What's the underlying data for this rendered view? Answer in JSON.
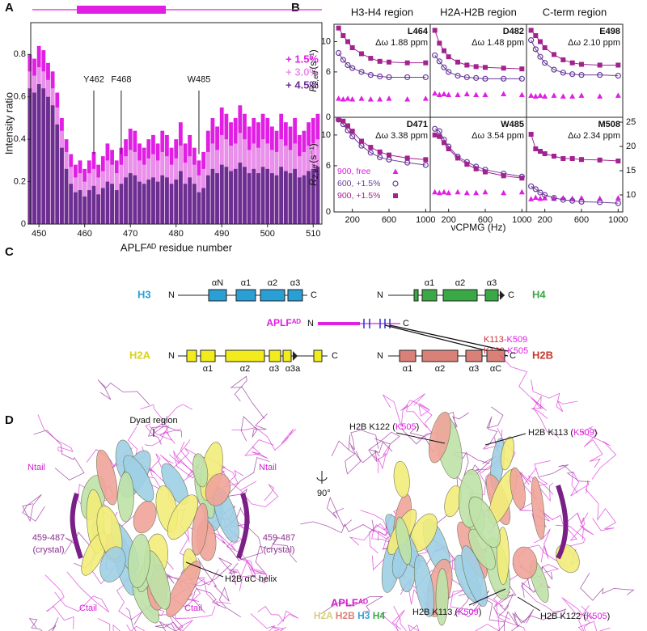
{
  "panel_labels": [
    "A",
    "B",
    "C",
    "D"
  ],
  "chart_data": [
    {
      "type": "bar",
      "xlabel": "APLFᴬᴰ residue number",
      "ylabel": "Intensity ratio",
      "x": [
        448,
        449,
        450,
        451,
        452,
        453,
        454,
        455,
        456,
        457,
        458,
        459,
        460,
        461,
        462,
        463,
        464,
        465,
        466,
        467,
        468,
        469,
        470,
        471,
        472,
        473,
        474,
        475,
        476,
        477,
        478,
        479,
        480,
        481,
        482,
        483,
        484,
        485,
        486,
        487,
        488,
        489,
        490,
        491,
        492,
        493,
        494,
        495,
        496,
        497,
        498,
        499,
        500,
        501,
        502,
        503,
        504,
        505,
        506,
        507,
        508,
        509,
        510,
        511
      ],
      "xlim": [
        448.2,
        511.9
      ],
      "xticks": [
        450,
        460,
        470,
        480,
        490,
        500,
        510
      ],
      "ylim": [
        0,
        0.95
      ],
      "yticks": [
        0,
        0.2,
        0.4,
        0.6,
        0.8
      ],
      "legend": "upper right",
      "series": [
        {
          "name": "+ 1.5%",
          "color": "#e01ee4",
          "values": [
            0.8,
            0.78,
            0.84,
            0.82,
            0.76,
            0.72,
            0.62,
            0.5,
            0.4,
            0.33,
            0.28,
            0.3,
            0.26,
            0.3,
            0.34,
            0.28,
            0.32,
            0.38,
            0.35,
            0.3,
            0.36,
            0.4,
            0.45,
            0.44,
            0.38,
            0.36,
            0.4,
            0.42,
            0.38,
            0.44,
            0.42,
            0.36,
            0.4,
            0.48,
            0.38,
            0.42,
            0.36,
            0.3,
            0.34,
            0.44,
            0.5,
            0.46,
            0.55,
            0.52,
            0.48,
            0.5,
            0.56,
            0.52,
            0.46,
            0.5,
            0.48,
            0.52,
            0.5,
            0.46,
            0.44,
            0.52,
            0.48,
            0.46,
            0.5,
            0.42,
            0.44,
            0.48,
            0.5,
            0.52
          ]
        },
        {
          "name": "+ 3.0%",
          "color": "#e990ea",
          "values": [
            0.72,
            0.7,
            0.74,
            0.72,
            0.68,
            0.64,
            0.55,
            0.44,
            0.34,
            0.27,
            0.22,
            0.24,
            0.2,
            0.24,
            0.26,
            0.22,
            0.25,
            0.3,
            0.28,
            0.24,
            0.28,
            0.32,
            0.35,
            0.34,
            0.3,
            0.28,
            0.31,
            0.33,
            0.3,
            0.34,
            0.32,
            0.28,
            0.31,
            0.37,
            0.29,
            0.32,
            0.28,
            0.23,
            0.26,
            0.34,
            0.38,
            0.35,
            0.42,
            0.4,
            0.37,
            0.38,
            0.43,
            0.4,
            0.35,
            0.38,
            0.36,
            0.4,
            0.38,
            0.35,
            0.34,
            0.4,
            0.37,
            0.35,
            0.38,
            0.32,
            0.34,
            0.37,
            0.38,
            0.4
          ]
        },
        {
          "name": "+ 4.5%",
          "color": "#6b2f90",
          "values": [
            0.64,
            0.62,
            0.66,
            0.64,
            0.6,
            0.56,
            0.47,
            0.36,
            0.26,
            0.19,
            0.15,
            0.16,
            0.13,
            0.16,
            0.18,
            0.14,
            0.17,
            0.2,
            0.19,
            0.16,
            0.19,
            0.22,
            0.24,
            0.23,
            0.2,
            0.19,
            0.21,
            0.22,
            0.2,
            0.23,
            0.22,
            0.19,
            0.21,
            0.25,
            0.19,
            0.22,
            0.19,
            0.15,
            0.17,
            0.23,
            0.26,
            0.24,
            0.28,
            0.27,
            0.25,
            0.26,
            0.29,
            0.27,
            0.24,
            0.26,
            0.24,
            0.27,
            0.26,
            0.24,
            0.23,
            0.27,
            0.25,
            0.24,
            0.26,
            0.22,
            0.23,
            0.25,
            0.26,
            0.27
          ]
        }
      ],
      "annotations": [
        {
          "text": "Y462",
          "x": 462
        },
        {
          "text": "F468",
          "x": 468
        },
        {
          "text": "W485",
          "x": 485
        }
      ]
    },
    {
      "type": "scatter",
      "column_titles": [
        "H3-H4 region",
        "H2A-H2B region",
        "C-term region"
      ],
      "ylabel": {
        "symbol": "R",
        "sub": "2,eff",
        "unit": "(s⁻¹)"
      },
      "xlabel": "νCPMG (Hz)",
      "x": [
        50,
        100,
        150,
        200,
        300,
        400,
        500,
        600,
        800,
        1000
      ],
      "xlim": [
        0,
        1050
      ],
      "xticks": [
        200,
        600,
        1000
      ],
      "ylim": [
        0,
        12.3
      ],
      "yticks": [
        0,
        6,
        10
      ],
      "y2lim": [
        6.5,
        26
      ],
      "y2ticks": [
        10,
        15,
        20,
        25
      ],
      "legend_subplot": 3,
      "series": [
        {
          "name": "900, free",
          "color": "#e01ee4",
          "marker": "triangle"
        },
        {
          "name": "600, +1.5%",
          "color": "#6a3b9c",
          "marker": "circle"
        },
        {
          "name": "900, +1.5%",
          "color": "#a2228f",
          "marker": "square"
        }
      ],
      "subplots": [
        {
          "residue": "L464",
          "shift": "Δω 1.88 ppm",
          "values": [
            [
              2.5,
              2.4,
              2.5,
              2.4,
              2.5,
              2.4,
              2.4,
              2.5,
              2.4,
              2.5
            ],
            [
              8.5,
              7.6,
              6.9,
              6.5,
              6.0,
              5.6,
              5.4,
              5.3,
              5.3,
              5.3
            ],
            [
              11.8,
              10.8,
              10.0,
              9.2,
              8.4,
              7.8,
              7.4,
              7.3,
              7.2,
              7.2
            ]
          ]
        },
        {
          "residue": "D482",
          "shift": "Δω 1.48 ppm",
          "values": [
            [
              3.2,
              3.0,
              3.1,
              3.0,
              3.0,
              3.1,
              3.0,
              3.0,
              3.1,
              3.0
            ],
            [
              8.2,
              7.4,
              6.6,
              6.0,
              5.5,
              5.3,
              5.2,
              5.1,
              5.1,
              5.1
            ],
            [
              11.5,
              9.8,
              8.8,
              8.0,
              7.3,
              6.9,
              6.7,
              6.6,
              6.5,
              6.4
            ]
          ]
        },
        {
          "residue": "E498",
          "shift": "Δω 2.10 ppm",
          "values": [
            [
              2.9,
              2.8,
              2.9,
              2.8,
              2.9,
              2.8,
              2.8,
              2.9,
              2.8,
              2.9
            ],
            [
              10.2,
              9.0,
              8.0,
              7.2,
              6.3,
              5.9,
              5.7,
              5.6,
              5.6,
              5.5
            ],
            [
              11.5,
              10.8,
              10.0,
              9.2,
              8.3,
              7.6,
              7.2,
              7.0,
              6.9,
              6.9
            ]
          ]
        },
        {
          "residue": "D471",
          "shift": "Δω 3.38 ppm",
          "values": [
            [
              null,
              null,
              null,
              null,
              null,
              null,
              null,
              null,
              null,
              null
            ],
            [
              12.0,
              11.4,
              10.6,
              9.8,
              8.6,
              7.7,
              7.1,
              6.8,
              6.4,
              6.1
            ],
            [
              12.0,
              11.8,
              11.2,
              10.5,
              9.2,
              8.4,
              7.8,
              7.4,
              7.0,
              6.8
            ]
          ]
        },
        {
          "residue": "W485",
          "shift": "Δω 3.54 ppm",
          "values": [
            [
              2.6,
              2.5,
              2.6,
              2.5,
              2.6,
              2.5,
              2.5,
              2.6,
              2.5,
              2.6
            ],
            [
              10.8,
              10.5,
              9.4,
              8.5,
              7.2,
              6.5,
              5.9,
              5.5,
              5.0,
              4.6
            ],
            [
              10.0,
              9.8,
              9.0,
              8.2,
              7.0,
              6.2,
              5.6,
              5.2,
              4.7,
              4.4
            ]
          ]
        },
        {
          "residue": "M508",
          "shift": "Δω 2.34 ppm",
          "axis": "y2",
          "values": [
            [
              9.2,
              9.5,
              9.3,
              9.4,
              9.3,
              9.4,
              9.3,
              9.4,
              9.3,
              9.4
            ],
            [
              11.8,
              11.2,
              10.5,
              10.0,
              9.4,
              9.0,
              8.8,
              8.6,
              8.5,
              8.3
            ],
            [
              22.5,
              19.5,
              19.0,
              18.5,
              18.0,
              17.5,
              17.5,
              17.3,
              17.2,
              17.0
            ]
          ]
        }
      ]
    }
  ],
  "diagram": {
    "h3": {
      "name": "H3",
      "n": "N",
      "c": "C",
      "helices": [
        "αN",
        "α1",
        "α2",
        "α3"
      ]
    },
    "h4": {
      "name": "H4",
      "n": "N",
      "c": "C",
      "helices": [
        "α1",
        "α2",
        "α3"
      ]
    },
    "aplf": {
      "name": "APLFᴬᴰ",
      "n": "N",
      "c": "C"
    },
    "h2a": {
      "name": "H2A",
      "n": "N",
      "c": "C",
      "helices": [
        "α1",
        "α2",
        "α3",
        "α3a"
      ]
    },
    "h2b": {
      "name": "H2B",
      "n": "N",
      "c": "C",
      "helices": [
        "α1",
        "α2",
        "α3",
        "αC"
      ]
    },
    "crosslinks": [
      [
        "K113",
        "-K509"
      ],
      [
        "K122",
        "-K505"
      ]
    ]
  },
  "structure": {
    "dyad": "Dyad region",
    "ntail": "Ntail",
    "ctail": "Ctail",
    "crystal": [
      "459-487",
      "(crystal)"
    ],
    "helix": "H2B αC helix",
    "rotation": "90°",
    "sites": [
      [
        "H2B K122 (",
        "K505",
        ")"
      ],
      [
        "H2B K113 (",
        "K509",
        ")"
      ],
      [
        "H2B K113 (",
        "K509",
        ")"
      ],
      [
        "H2B K122 (",
        "K505",
        ")"
      ]
    ],
    "legend_title": "APLFᴬᴰ",
    "legend_items": [
      "H2A",
      "H2B",
      "H3",
      "H4"
    ]
  }
}
